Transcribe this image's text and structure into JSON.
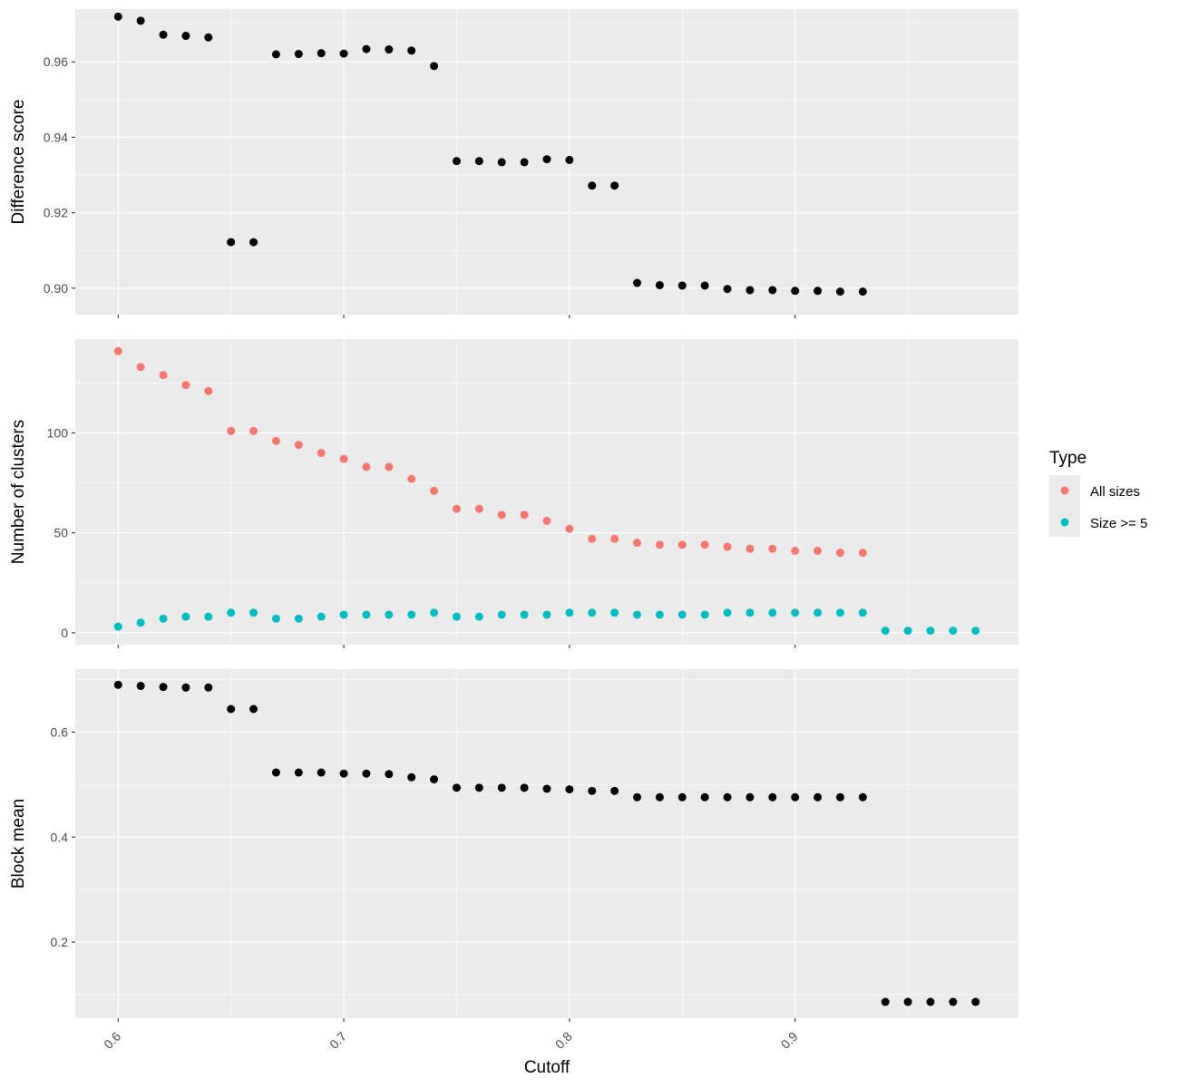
{
  "colors": {
    "panel_bg": "#EBEBEB",
    "grid": "#FFFFFF",
    "tick": "#333333",
    "all_sizes": "#F8766D",
    "size_ge_5": "#00BFC4",
    "default_point": "#000000"
  },
  "chart_data": [
    {
      "type": "scatter",
      "ylabel": "Difference score",
      "ylim": [
        0.893,
        0.974
      ],
      "yticks": [
        0.9,
        0.92,
        0.94,
        0.96
      ],
      "ytick_labels": [
        "0.90",
        "0.92",
        "0.94",
        "0.96"
      ],
      "grid": true,
      "series": [
        {
          "color": "#000000",
          "x": [
            0.6,
            0.61,
            0.62,
            0.63,
            0.64,
            0.65,
            0.66,
            0.67,
            0.68,
            0.69,
            0.7,
            0.71,
            0.72,
            0.73,
            0.74,
            0.75,
            0.76,
            0.77,
            0.78,
            0.79,
            0.8,
            0.81,
            0.82,
            0.83,
            0.84,
            0.85,
            0.86,
            0.87,
            0.88,
            0.89,
            0.9,
            0.91,
            0.92,
            0.93
          ],
          "y": [
            0.972,
            0.9709,
            0.9672,
            0.9669,
            0.9665,
            0.9122,
            0.9122,
            0.962,
            0.9621,
            0.9623,
            0.9622,
            0.9634,
            0.9633,
            0.963,
            0.9589,
            0.9337,
            0.9337,
            0.9334,
            0.9334,
            0.9342,
            0.934,
            0.9272,
            0.9272,
            0.9014,
            0.9008,
            0.9007,
            0.9007,
            0.8998,
            0.8995,
            0.8995,
            0.8993,
            0.8993,
            0.8991,
            0.8991
          ]
        }
      ]
    },
    {
      "type": "scatter",
      "ylabel": "Number of clusters",
      "ylim": [
        -6,
        147
      ],
      "yticks": [
        0,
        50,
        100
      ],
      "ytick_labels": [
        "0",
        "50",
        "100"
      ],
      "grid": true,
      "legend": {
        "title": "Type",
        "position": "right",
        "entries": [
          "All sizes",
          "Size >= 5"
        ]
      },
      "series": [
        {
          "name": "All sizes",
          "color": "#F8766D",
          "x": [
            0.6,
            0.61,
            0.62,
            0.63,
            0.64,
            0.65,
            0.66,
            0.67,
            0.68,
            0.69,
            0.7,
            0.71,
            0.72,
            0.73,
            0.74,
            0.75,
            0.76,
            0.77,
            0.78,
            0.79,
            0.8,
            0.81,
            0.82,
            0.83,
            0.84,
            0.85,
            0.86,
            0.87,
            0.88,
            0.89,
            0.9,
            0.91,
            0.92,
            0.93
          ],
          "y": [
            141,
            133,
            129,
            124,
            121,
            101,
            101,
            96,
            94,
            90,
            87,
            83,
            83,
            77,
            71,
            62,
            62,
            59,
            59,
            56,
            52,
            47,
            47,
            45,
            44,
            44,
            44,
            43,
            42,
            42,
            41,
            41,
            40,
            40
          ]
        },
        {
          "name": "Size >= 5",
          "color": "#00BFC4",
          "x": [
            0.6,
            0.61,
            0.62,
            0.63,
            0.64,
            0.65,
            0.66,
            0.67,
            0.68,
            0.69,
            0.7,
            0.71,
            0.72,
            0.73,
            0.74,
            0.75,
            0.76,
            0.77,
            0.78,
            0.79,
            0.8,
            0.81,
            0.82,
            0.83,
            0.84,
            0.85,
            0.86,
            0.87,
            0.88,
            0.89,
            0.9,
            0.91,
            0.92,
            0.93,
            0.94,
            0.95,
            0.96,
            0.97,
            0.98
          ],
          "y": [
            3,
            5,
            7,
            8,
            8,
            10,
            10,
            7,
            7,
            8,
            9,
            9,
            9,
            9,
            10,
            8,
            8,
            9,
            9,
            9,
            10,
            10,
            10,
            9,
            9,
            9,
            9,
            10,
            10,
            10,
            10,
            10,
            10,
            10,
            1,
            1,
            1,
            1,
            1
          ]
        }
      ]
    },
    {
      "type": "scatter",
      "ylabel": "Block mean",
      "xlabel": "Cutoff",
      "ylim": [
        0.055,
        0.72
      ],
      "yticks": [
        0.2,
        0.4,
        0.6
      ],
      "ytick_labels": [
        "0.2",
        "0.4",
        "0.6"
      ],
      "xlim": [
        0.581,
        0.999
      ],
      "xticks": [
        0.6,
        0.7,
        0.8,
        0.9
      ],
      "xtick_labels": [
        "0.6",
        "0.7",
        "0.8",
        "0.9"
      ],
      "grid": true,
      "series": [
        {
          "color": "#000000",
          "x": [
            0.6,
            0.61,
            0.62,
            0.63,
            0.64,
            0.65,
            0.66,
            0.67,
            0.68,
            0.69,
            0.7,
            0.71,
            0.72,
            0.73,
            0.74,
            0.75,
            0.76,
            0.77,
            0.78,
            0.79,
            0.8,
            0.81,
            0.82,
            0.83,
            0.84,
            0.85,
            0.86,
            0.87,
            0.88,
            0.89,
            0.9,
            0.91,
            0.92,
            0.93,
            0.94,
            0.95,
            0.96,
            0.97,
            0.98
          ],
          "y": [
            0.69,
            0.688,
            0.686,
            0.685,
            0.685,
            0.644,
            0.644,
            0.523,
            0.523,
            0.523,
            0.521,
            0.521,
            0.52,
            0.514,
            0.51,
            0.494,
            0.494,
            0.494,
            0.494,
            0.492,
            0.491,
            0.488,
            0.488,
            0.476,
            0.476,
            0.476,
            0.476,
            0.476,
            0.476,
            0.476,
            0.476,
            0.476,
            0.476,
            0.476,
            0.086,
            0.086,
            0.086,
            0.086,
            0.086
          ]
        }
      ]
    }
  ]
}
